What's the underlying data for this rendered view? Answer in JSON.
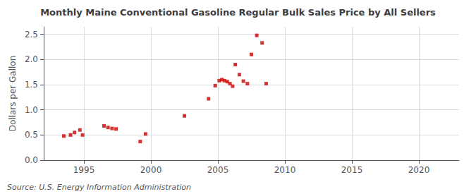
{
  "chart_data": {
    "type": "scatter",
    "title": "Monthly Maine Conventional Gasoline Regular Bulk Sales Price by All Sellers",
    "ylabel": "Dollars per Gallon",
    "annotations": [
      "Source: U.S. Energy Information Administration"
    ],
    "x": [
      1993.5,
      1994.0,
      1994.3,
      1994.7,
      1994.9,
      1996.5,
      1996.8,
      1997.1,
      1997.4,
      1999.2,
      1999.6,
      2002.5,
      2004.3,
      2004.8,
      2005.1,
      2005.3,
      2005.5,
      2005.7,
      2005.9,
      2006.1,
      2006.3,
      2006.6,
      2006.9,
      2007.2,
      2007.5,
      2007.9,
      2008.3,
      2008.6
    ],
    "values": [
      0.48,
      0.5,
      0.55,
      0.6,
      0.5,
      0.68,
      0.65,
      0.63,
      0.62,
      0.37,
      0.52,
      0.88,
      1.22,
      1.48,
      1.58,
      1.6,
      1.58,
      1.56,
      1.52,
      1.47,
      1.9,
      1.7,
      1.57,
      1.52,
      2.1,
      2.48,
      2.33,
      1.52
    ],
    "color": "#cc0000",
    "marker": "square",
    "xlim": [
      1992,
      2023
    ],
    "xticks": [
      1995,
      2000,
      2005,
      2010,
      2015,
      2020
    ],
    "ylim": [
      0.0,
      2.65
    ],
    "yticks": [
      {
        "value": 0.0,
        "label": "0.0"
      },
      {
        "value": 0.5,
        "label": "0.5"
      },
      {
        "value": 1.0,
        "label": "1.0"
      },
      {
        "value": 1.5,
        "label": "1.5"
      },
      {
        "value": 2.0,
        "label": "2.0"
      },
      {
        "value": 2.5,
        "label": "2.5"
      }
    ],
    "grid": true
  }
}
